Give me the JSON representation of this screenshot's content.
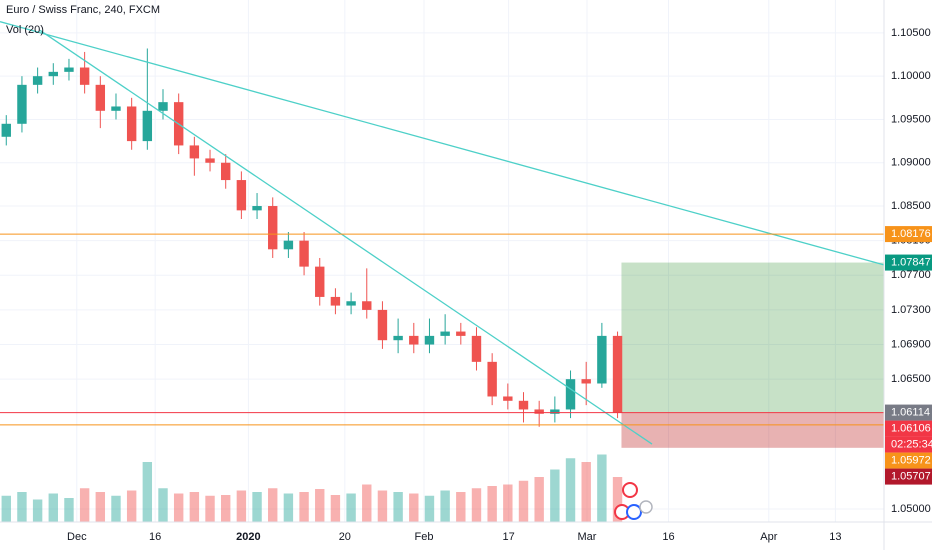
{
  "chart_data": {
    "type": "candlestick",
    "title": "Euro / Swiss Franc, 240, FXCM",
    "indicator": "Vol (20)",
    "up_color": "#26a69a",
    "down_color": "#ef5350",
    "x": [
      -9,
      -7,
      -5,
      -3,
      -1,
      1,
      3,
      5,
      7,
      9,
      11,
      13,
      15,
      17,
      19,
      21,
      23,
      25,
      27,
      29,
      31,
      33,
      35,
      37,
      39,
      41,
      43,
      45,
      47,
      49,
      51,
      53,
      55,
      57,
      59,
      61,
      63,
      65,
      67,
      69
    ],
    "open": [
      1.093,
      1.0945,
      1.099,
      1.1,
      1.1005,
      1.101,
      1.099,
      1.096,
      1.0965,
      1.0925,
      1.096,
      1.097,
      1.092,
      1.0905,
      1.09,
      1.088,
      1.0845,
      1.085,
      1.08,
      1.081,
      1.078,
      1.0745,
      1.0735,
      1.074,
      1.073,
      1.0695,
      1.07,
      1.069,
      1.07,
      1.0705,
      1.07,
      1.067,
      1.063,
      1.0625,
      1.0615,
      1.061,
      1.0615,
      1.065,
      1.0645,
      1.07
    ],
    "high": [
      1.0955,
      1.1,
      1.101,
      1.1015,
      1.102,
      1.1028,
      1.1,
      1.098,
      1.0975,
      1.1032,
      1.0985,
      1.098,
      1.093,
      1.0915,
      1.091,
      1.089,
      1.0865,
      1.086,
      1.082,
      1.082,
      1.079,
      1.0755,
      1.075,
      1.0778,
      1.074,
      1.072,
      1.0715,
      1.072,
      1.0725,
      1.0715,
      1.071,
      1.068,
      1.0645,
      1.0635,
      1.0625,
      1.063,
      1.066,
      1.067,
      1.0715,
      1.0705
    ],
    "low": [
      1.092,
      1.0935,
      1.098,
      1.099,
      1.0995,
      1.098,
      1.094,
      1.095,
      1.0915,
      1.0915,
      1.095,
      1.091,
      1.0885,
      1.089,
      1.087,
      1.0835,
      1.0835,
      1.079,
      1.079,
      1.077,
      1.0735,
      1.0725,
      1.0725,
      1.072,
      1.0685,
      1.068,
      1.068,
      1.068,
      1.069,
      1.069,
      1.066,
      1.062,
      1.0615,
      1.06,
      1.0595,
      1.06,
      1.0605,
      1.062,
      1.064,
      1.0605
    ],
    "close": [
      1.0945,
      1.099,
      1.1,
      1.1005,
      1.101,
      1.099,
      1.096,
      1.0965,
      1.0925,
      1.096,
      1.097,
      1.092,
      1.0905,
      1.09,
      1.088,
      1.0845,
      1.085,
      1.08,
      1.081,
      1.078,
      1.0745,
      1.0735,
      1.074,
      1.073,
      1.0695,
      1.07,
      1.069,
      1.07,
      1.0705,
      1.07,
      1.067,
      1.063,
      1.0625,
      1.0615,
      1.061,
      1.0615,
      1.065,
      1.0645,
      1.07,
      1.0611
    ],
    "volume": [
      35,
      40,
      30,
      38,
      32,
      45,
      40,
      35,
      42,
      80,
      45,
      38,
      40,
      35,
      36,
      42,
      40,
      45,
      38,
      40,
      44,
      36,
      38,
      50,
      42,
      40,
      38,
      35,
      42,
      40,
      45,
      48,
      50,
      55,
      60,
      70,
      85,
      80,
      90,
      60
    ],
    "vlim": [
      0,
      100
    ],
    "xlim": [
      -9.8,
      103
    ],
    "ylim": [
      1.0485,
      1.1088
    ],
    "xticks": [
      {
        "value": 0,
        "label": "Dec"
      },
      {
        "value": 10,
        "label": "16"
      },
      {
        "value": 21.9,
        "label": "2020"
      },
      {
        "value": 34.2,
        "label": "20"
      },
      {
        "value": 44.3,
        "label": "Feb"
      },
      {
        "value": 55.1,
        "label": "17"
      },
      {
        "value": 65.1,
        "label": "Mar"
      },
      {
        "value": 75.5,
        "label": "16"
      },
      {
        "value": 88.3,
        "label": "Apr"
      },
      {
        "value": 96.8,
        "label": "13"
      }
    ],
    "yticks": [
      {
        "value": 1.105,
        "label": "1.10500"
      },
      {
        "value": 1.1,
        "label": "1.10000"
      },
      {
        "value": 1.095,
        "label": "1.09500"
      },
      {
        "value": 1.09,
        "label": "1.09000"
      },
      {
        "value": 1.085,
        "label": "1.08500"
      },
      {
        "value": 1.081,
        "label": "1.08100"
      },
      {
        "value": 1.077,
        "label": "1.07700"
      },
      {
        "value": 1.073,
        "label": "1.07300"
      },
      {
        "value": 1.069,
        "label": "1.06900"
      },
      {
        "value": 1.065,
        "label": "1.06500"
      },
      {
        "value": 1.05,
        "label": "1.05000"
      }
    ],
    "grid": true,
    "trendlines": [
      {
        "color": "#4dd0c8",
        "x": [
          -9.8,
          103
        ],
        "y": [
          1.1063,
          1.0782
        ]
      },
      {
        "color": "#4dd0c8",
        "x": [
          -4.7,
          73.4
        ],
        "y": [
          1.1053,
          1.0575
        ]
      }
    ],
    "position": {
      "x": [
        69.5,
        103
      ],
      "entry": 1.06114,
      "target": 1.07847,
      "stop": 1.05707
    },
    "price_labels": [
      {
        "value": 1.08176,
        "label": "1.08176",
        "color": "#f7931a",
        "line": true
      },
      {
        "value": 1.07847,
        "label": "1.07847",
        "color": "#089981",
        "line": false
      },
      {
        "value": 1.06114,
        "label": "1.06114",
        "color": "#787b86",
        "line": true
      },
      {
        "value": 1.06106,
        "label": "1.06106",
        "color": "#f23645",
        "line": false
      },
      {
        "value": 1.05972,
        "label": "1.05972",
        "color": "#f7931a",
        "line": true
      },
      {
        "value": 1.05707,
        "label": "1.05707",
        "color": "#b2182b",
        "line": false
      }
    ],
    "countdown": "02:25:34"
  }
}
